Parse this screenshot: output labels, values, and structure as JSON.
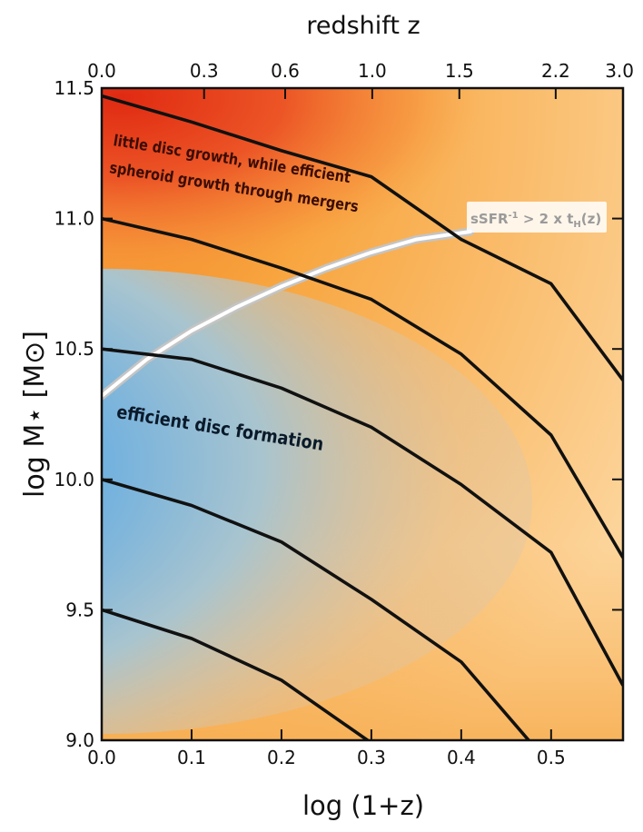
{
  "chart_data": {
    "type": "line",
    "top_axis_title": "redshift z",
    "xlabel": "log (1+z)",
    "ylabel": "log M⋆  [M⊙]",
    "xlim": [
      0.0,
      0.58
    ],
    "ylim": [
      9.0,
      11.5
    ],
    "x_ticks": [
      0.0,
      0.1,
      0.2,
      0.3,
      0.4,
      0.5
    ],
    "x_tick_labels": [
      "0.0",
      "0.1",
      "0.2",
      "0.3",
      "0.4",
      "0.5"
    ],
    "y_ticks": [
      9.0,
      9.5,
      10.0,
      10.5,
      11.0,
      11.5
    ],
    "y_tick_labels": [
      "9.0",
      "9.5",
      "10.0",
      "10.5",
      "11.0",
      "11.5"
    ],
    "top_ticks": [
      {
        "x": 0.0,
        "label": "0.0"
      },
      {
        "x": 0.1139,
        "label": "0.3"
      },
      {
        "x": 0.2041,
        "label": "0.6"
      },
      {
        "x": 0.301,
        "label": "1.0"
      },
      {
        "x": 0.3979,
        "label": "1.5"
      },
      {
        "x": 0.5051,
        "label": "2.2"
      },
      {
        "x": 0.6021,
        "label": "3.0"
      }
    ],
    "series": [
      {
        "x": [
          0.0,
          0.1,
          0.2,
          0.3,
          0.4,
          0.5,
          0.58
        ],
        "y": [
          11.47,
          11.37,
          11.26,
          11.16,
          10.92,
          10.75,
          10.38
        ]
      },
      {
        "x": [
          0.0,
          0.1,
          0.2,
          0.3,
          0.4,
          0.5,
          0.58
        ],
        "y": [
          11.0,
          10.92,
          10.81,
          10.69,
          10.48,
          10.17,
          9.7
        ]
      },
      {
        "x": [
          0.0,
          0.1,
          0.2,
          0.3,
          0.4,
          0.5,
          0.58
        ],
        "y": [
          10.5,
          10.46,
          10.35,
          10.2,
          9.98,
          9.72,
          9.21
        ]
      },
      {
        "x": [
          0.0,
          0.1,
          0.2,
          0.3,
          0.4,
          0.48
        ],
        "y": [
          10.0,
          9.9,
          9.76,
          9.54,
          9.3,
          8.98
        ]
      },
      {
        "x": [
          0.0,
          0.1,
          0.2,
          0.3
        ],
        "y": [
          9.5,
          9.39,
          9.23,
          8.99
        ]
      }
    ],
    "threshold_curve": {
      "label_main": "sSFR",
      "label_sup": "-1",
      "label_rest": " > 2 x t",
      "label_sub": "H",
      "label_end": "(z)",
      "x": [
        0.0,
        0.05,
        0.1,
        0.15,
        0.2,
        0.25,
        0.3,
        0.35,
        0.41
      ],
      "y": [
        10.32,
        10.46,
        10.57,
        10.66,
        10.74,
        10.81,
        10.87,
        10.92,
        10.95
      ]
    },
    "regions": [
      {
        "label_lines": [
          "little disc growth, while efficient",
          "spheroid growth through mergers"
        ],
        "color": "#e8401e"
      },
      {
        "label_lines": [
          "efficient disc formation"
        ],
        "color": "#2b8fe0"
      }
    ],
    "colors": {
      "background": "#f9a23a",
      "top_region": "#e8401e",
      "disc_region": "#2b8fe0",
      "lines": "#111111",
      "threshold": "#bdbdbd"
    }
  }
}
